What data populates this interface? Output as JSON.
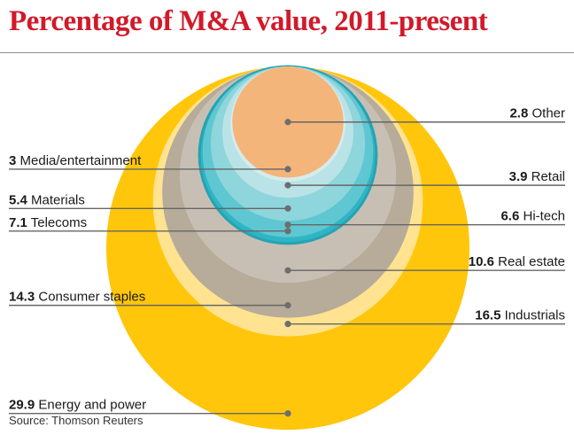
{
  "chart_data": {
    "type": "nested-bubble",
    "title": "Percentage of M&A value, 2011-present",
    "unit": "%",
    "series": [
      {
        "name": "Energy and power",
        "value": 29.9,
        "color": "#ffc60b",
        "side": "left"
      },
      {
        "name": "Industrials",
        "value": 16.5,
        "color": "#ffe391",
        "side": "right"
      },
      {
        "name": "Consumer staples",
        "value": 14.3,
        "color": "#b7ab9a",
        "side": "left"
      },
      {
        "name": "Real estate",
        "value": 10.6,
        "color": "#c8bfb4",
        "side": "right"
      },
      {
        "name": "Telecoms",
        "value": 7.1,
        "color": "#2fb5c4",
        "side": "left"
      },
      {
        "name": "Hi-tech",
        "value": 6.6,
        "color": "#5fc7d2",
        "side": "right"
      },
      {
        "name": "Materials",
        "value": 5.4,
        "color": "#8fd5dc",
        "side": "left"
      },
      {
        "name": "Retail",
        "value": 3.9,
        "color": "#b9e3e6",
        "side": "right"
      },
      {
        "name": "Media/entertainment",
        "value": 3,
        "color": "#d6ecec",
        "side": "left"
      },
      {
        "name": "Other",
        "value": 2.8,
        "color": "#f4b57a",
        "side": "right"
      }
    ],
    "source": "Source: Thomson Reuters"
  },
  "colors": {
    "title": "#d11a2a",
    "line": "#666666",
    "marker": "#6e6e6e"
  }
}
